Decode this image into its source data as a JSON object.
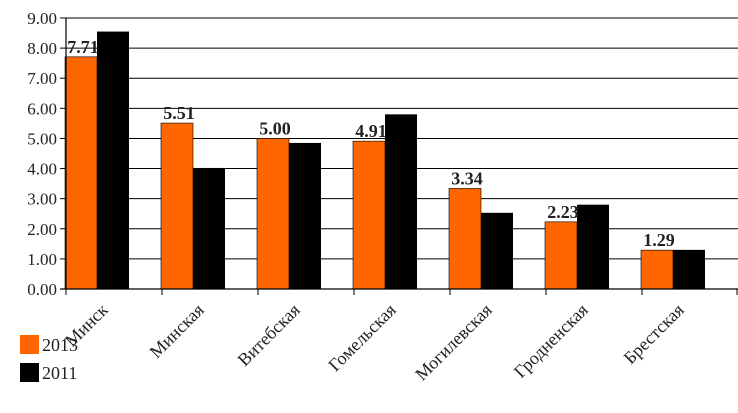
{
  "chart_data": {
    "type": "bar",
    "categories": [
      "Минск",
      "Минская",
      "Витебская",
      "Гомельская",
      "Могилевская",
      "Гродненская",
      "Брестская"
    ],
    "series": [
      {
        "name": "2013",
        "color": "#ff6600",
        "values": [
          7.71,
          5.51,
          5.0,
          4.91,
          3.34,
          2.23,
          1.29
        ],
        "data_labels": [
          "7.71",
          "5.51",
          "5.00",
          "4.91",
          "3.34",
          "2.23",
          "1.29"
        ]
      },
      {
        "name": "2011",
        "color": "#000000",
        "values": [
          8.55,
          4.02,
          4.85,
          5.8,
          2.53,
          2.8,
          1.3
        ]
      }
    ],
    "ylim": [
      0,
      9
    ],
    "yticks": [
      "0.00",
      "1.00",
      "2.00",
      "3.00",
      "4.00",
      "5.00",
      "6.00",
      "7.00",
      "8.00",
      "9.00"
    ],
    "grid": true,
    "legend": "bottom-left"
  }
}
